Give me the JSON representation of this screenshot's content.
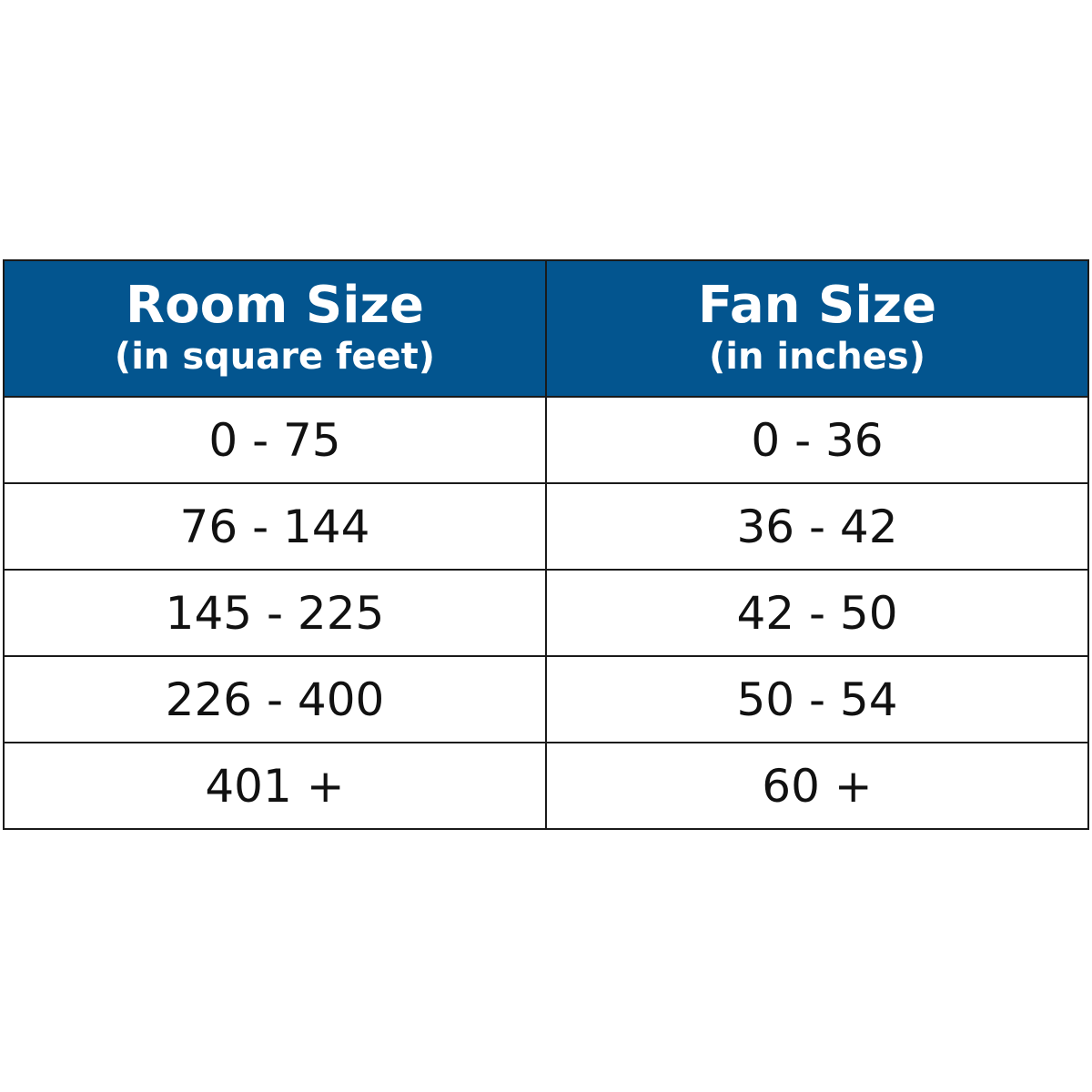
{
  "headers": [
    {
      "title": "Room Size",
      "subtitle": "(in square feet)"
    },
    {
      "title": "Fan Size",
      "subtitle": "(in inches)"
    }
  ],
  "rows": [
    [
      "0 - 75",
      "0 - 36"
    ],
    [
      "76 - 144",
      "36 - 42"
    ],
    [
      "145 - 225",
      "42 - 50"
    ],
    [
      "226 - 400",
      "50 - 54"
    ],
    [
      "401 +",
      "60 +"
    ]
  ],
  "colors": {
    "header_bg": "#03558f",
    "header_text": "#ffffff",
    "border": "#1a1a1a"
  }
}
